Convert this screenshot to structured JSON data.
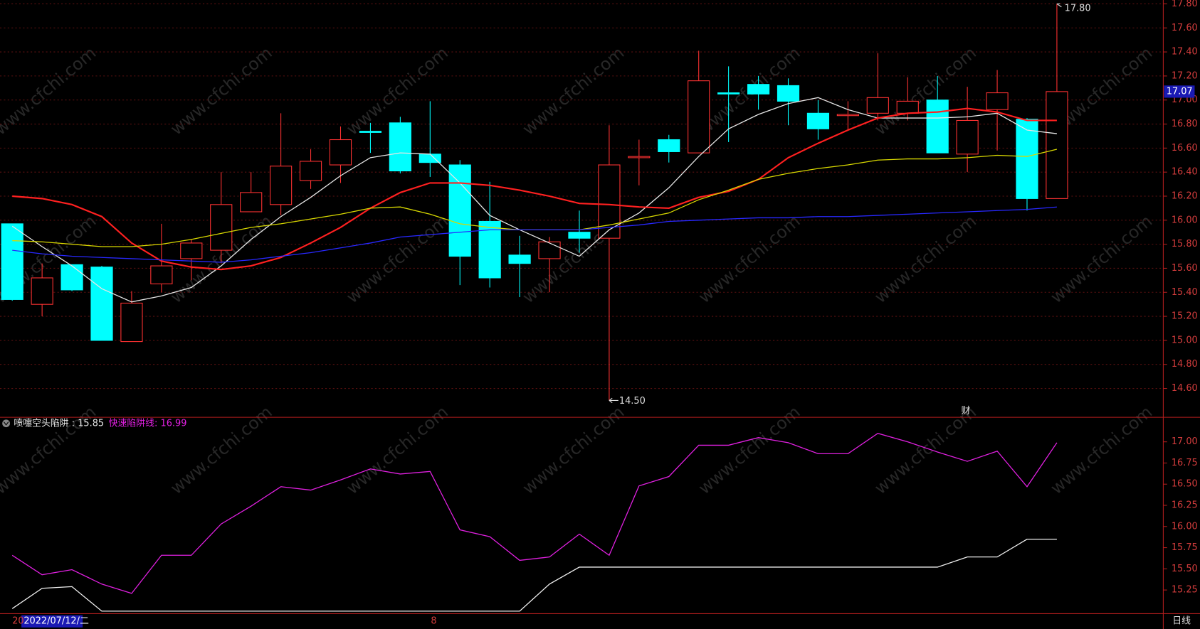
{
  "chart_data": [
    {
      "type": "candlestick",
      "open": [
        15.97,
        15.3,
        15.63,
        15.61,
        14.99,
        15.47,
        15.68,
        15.75,
        16.07,
        16.13,
        16.33,
        16.46,
        16.74,
        16.81,
        16.55,
        16.46,
        15.99,
        15.71,
        15.68,
        15.9,
        15.85,
        16.52,
        16.67,
        16.56,
        17.06,
        17.13,
        17.12,
        16.89,
        16.87,
        16.89,
        16.89,
        17.0,
        16.55,
        16.92,
        16.84,
        16.18
      ],
      "high": [
        15.97,
        15.64,
        15.63,
        15.62,
        15.41,
        15.97,
        15.84,
        16.4,
        16.4,
        16.89,
        16.59,
        16.78,
        16.81,
        16.86,
        16.99,
        16.5,
        16.32,
        15.87,
        15.86,
        16.08,
        16.79,
        16.67,
        16.71,
        17.41,
        17.28,
        17.2,
        17.18,
        17.0,
        16.99,
        17.39,
        17.19,
        17.2,
        17.11,
        17.25,
        16.85,
        17.8
      ],
      "low": [
        15.33,
        15.2,
        15.41,
        15.0,
        14.99,
        15.4,
        15.5,
        15.64,
        16.07,
        16.04,
        16.26,
        16.31,
        16.56,
        16.39,
        16.36,
        15.46,
        15.44,
        15.36,
        15.4,
        15.73,
        14.5,
        16.29,
        16.48,
        16.56,
        16.65,
        16.92,
        16.79,
        16.67,
        16.75,
        16.83,
        16.83,
        16.56,
        16.4,
        16.58,
        16.08,
        16.18
      ],
      "close": [
        15.34,
        15.52,
        15.42,
        15.0,
        15.31,
        15.62,
        15.81,
        16.13,
        16.23,
        16.45,
        16.49,
        16.67,
        16.73,
        16.41,
        16.48,
        15.7,
        15.52,
        15.64,
        15.82,
        15.85,
        16.46,
        16.53,
        16.57,
        17.16,
        17.05,
        17.05,
        16.99,
        16.76,
        16.88,
        17.02,
        16.99,
        16.56,
        16.83,
        17.06,
        16.18,
        17.07
      ],
      "up_color": "#ff3232",
      "down_color": "#00ffff",
      "series": [
        {
          "color": "#e6e6e6",
          "values": [
            15.95,
            15.78,
            15.62,
            15.43,
            15.32,
            15.37,
            15.44,
            15.62,
            15.84,
            16.03,
            16.19,
            16.37,
            16.52,
            16.56,
            16.55,
            16.31,
            16.04,
            15.92,
            15.81,
            15.7,
            15.92,
            16.06,
            16.27,
            16.53,
            16.76,
            16.88,
            16.97,
            17.02,
            16.92,
            16.85,
            16.85,
            16.85,
            16.86,
            16.89,
            16.75,
            16.72
          ]
        },
        {
          "color": "#ff2020",
          "values": [
            16.2,
            16.18,
            16.13,
            16.03,
            15.81,
            15.66,
            15.61,
            15.59,
            15.62,
            15.69,
            15.81,
            15.94,
            16.1,
            16.23,
            16.31,
            16.31,
            16.29,
            16.25,
            16.2,
            16.14,
            16.13,
            16.11,
            16.1,
            16.19,
            16.24,
            16.34,
            16.52,
            16.64,
            16.75,
            16.85,
            16.89,
            16.9,
            16.93,
            16.9,
            16.83,
            16.83
          ]
        },
        {
          "color": "#d8d800",
          "values": [
            15.83,
            15.82,
            15.8,
            15.78,
            15.78,
            15.8,
            15.84,
            15.89,
            15.94,
            15.97,
            16.01,
            16.05,
            16.1,
            16.11,
            16.05,
            15.97,
            15.94,
            15.92,
            15.92,
            15.92,
            15.96,
            16.01,
            16.06,
            16.17,
            16.25,
            16.34,
            16.39,
            16.43,
            16.46,
            16.5,
            16.51,
            16.51,
            16.52,
            16.54,
            16.53,
            16.59
          ]
        },
        {
          "color": "#2828ff",
          "values": [
            15.75,
            15.72,
            15.7,
            15.69,
            15.68,
            15.67,
            15.66,
            15.65,
            15.67,
            15.7,
            15.73,
            15.77,
            15.81,
            15.86,
            15.88,
            15.9,
            15.92,
            15.92,
            15.92,
            15.92,
            15.94,
            15.96,
            15.99,
            16.0,
            16.01,
            16.02,
            16.02,
            16.03,
            16.03,
            16.04,
            16.05,
            16.06,
            16.07,
            16.08,
            16.09,
            16.11
          ]
        }
      ],
      "ylim": [
        14.36,
        17.832
      ],
      "yticks": [
        {
          "value": 17.8,
          "label": "17.80"
        },
        {
          "value": 17.6,
          "label": "17.60"
        },
        {
          "value": 17.4,
          "label": "17.40"
        },
        {
          "value": 17.2,
          "label": "17.20"
        },
        {
          "value": 17.0,
          "label": "17.00"
        },
        {
          "value": 16.8,
          "label": "16.80"
        },
        {
          "value": 16.6,
          "label": "16.60"
        },
        {
          "value": 16.4,
          "label": "16.40"
        },
        {
          "value": 16.2,
          "label": "16.20"
        },
        {
          "value": 16.0,
          "label": "16.00"
        },
        {
          "value": 15.8,
          "label": "15.80"
        },
        {
          "value": 15.6,
          "label": "15.60"
        },
        {
          "value": 15.4,
          "label": "15.40"
        },
        {
          "value": 15.2,
          "label": "15.20"
        },
        {
          "value": 15.0,
          "label": "15.00"
        },
        {
          "value": 14.8,
          "label": "14.80"
        },
        {
          "value": 14.6,
          "label": "14.60"
        }
      ],
      "grid": true,
      "high_label": {
        "value": 17.8,
        "label": "17.80"
      },
      "low_label": {
        "value": 14.5,
        "label": "14.50"
      },
      "current_price": 17.07,
      "event_marker": "财"
    },
    {
      "type": "line",
      "series": [
        {
          "name": "喷嚏空头陷阱",
          "separator": " : ",
          "color": "#f0f0f0",
          "values": [
            15.03,
            15.27,
            15.29,
            15.0,
            15.0,
            15.0,
            15.0,
            15.0,
            15.0,
            15.0,
            15.0,
            15.0,
            15.0,
            15.0,
            15.0,
            15.0,
            15.0,
            15.0,
            15.32,
            15.52,
            15.52,
            15.52,
            15.52,
            15.52,
            15.52,
            15.52,
            15.52,
            15.52,
            15.52,
            15.52,
            15.52,
            15.52,
            15.64,
            15.64,
            15.85,
            15.85
          ]
        },
        {
          "name": "快速陷阱线",
          "separator": ": ",
          "color": "#e020e0",
          "values": [
            15.66,
            15.43,
            15.49,
            15.32,
            15.21,
            15.66,
            15.66,
            16.03,
            16.24,
            16.47,
            16.43,
            16.55,
            16.68,
            16.62,
            16.65,
            15.96,
            15.88,
            15.6,
            15.64,
            15.91,
            15.66,
            16.48,
            16.59,
            16.96,
            16.96,
            17.05,
            16.99,
            16.86,
            16.86,
            17.1,
            17.0,
            16.88,
            16.77,
            16.89,
            16.47,
            16.99
          ]
        }
      ],
      "ylim": [
        14.97,
        17.29
      ],
      "yticks": [
        {
          "value": 17.0,
          "label": "17.00"
        },
        {
          "value": 16.75,
          "label": "16.75"
        },
        {
          "value": 16.5,
          "label": "16.50"
        },
        {
          "value": 16.25,
          "label": "16.25"
        },
        {
          "value": 16.0,
          "label": "16.00"
        },
        {
          "value": 15.75,
          "label": "15.75"
        },
        {
          "value": 15.5,
          "label": "15.50"
        },
        {
          "value": 15.25,
          "label": "15.25"
        }
      ],
      "grid": false
    }
  ],
  "footer": {
    "left": "20",
    "date": "2022/07/12/二",
    "mark": "8",
    "period": "日线"
  },
  "watermark": "www.cfchi.com"
}
